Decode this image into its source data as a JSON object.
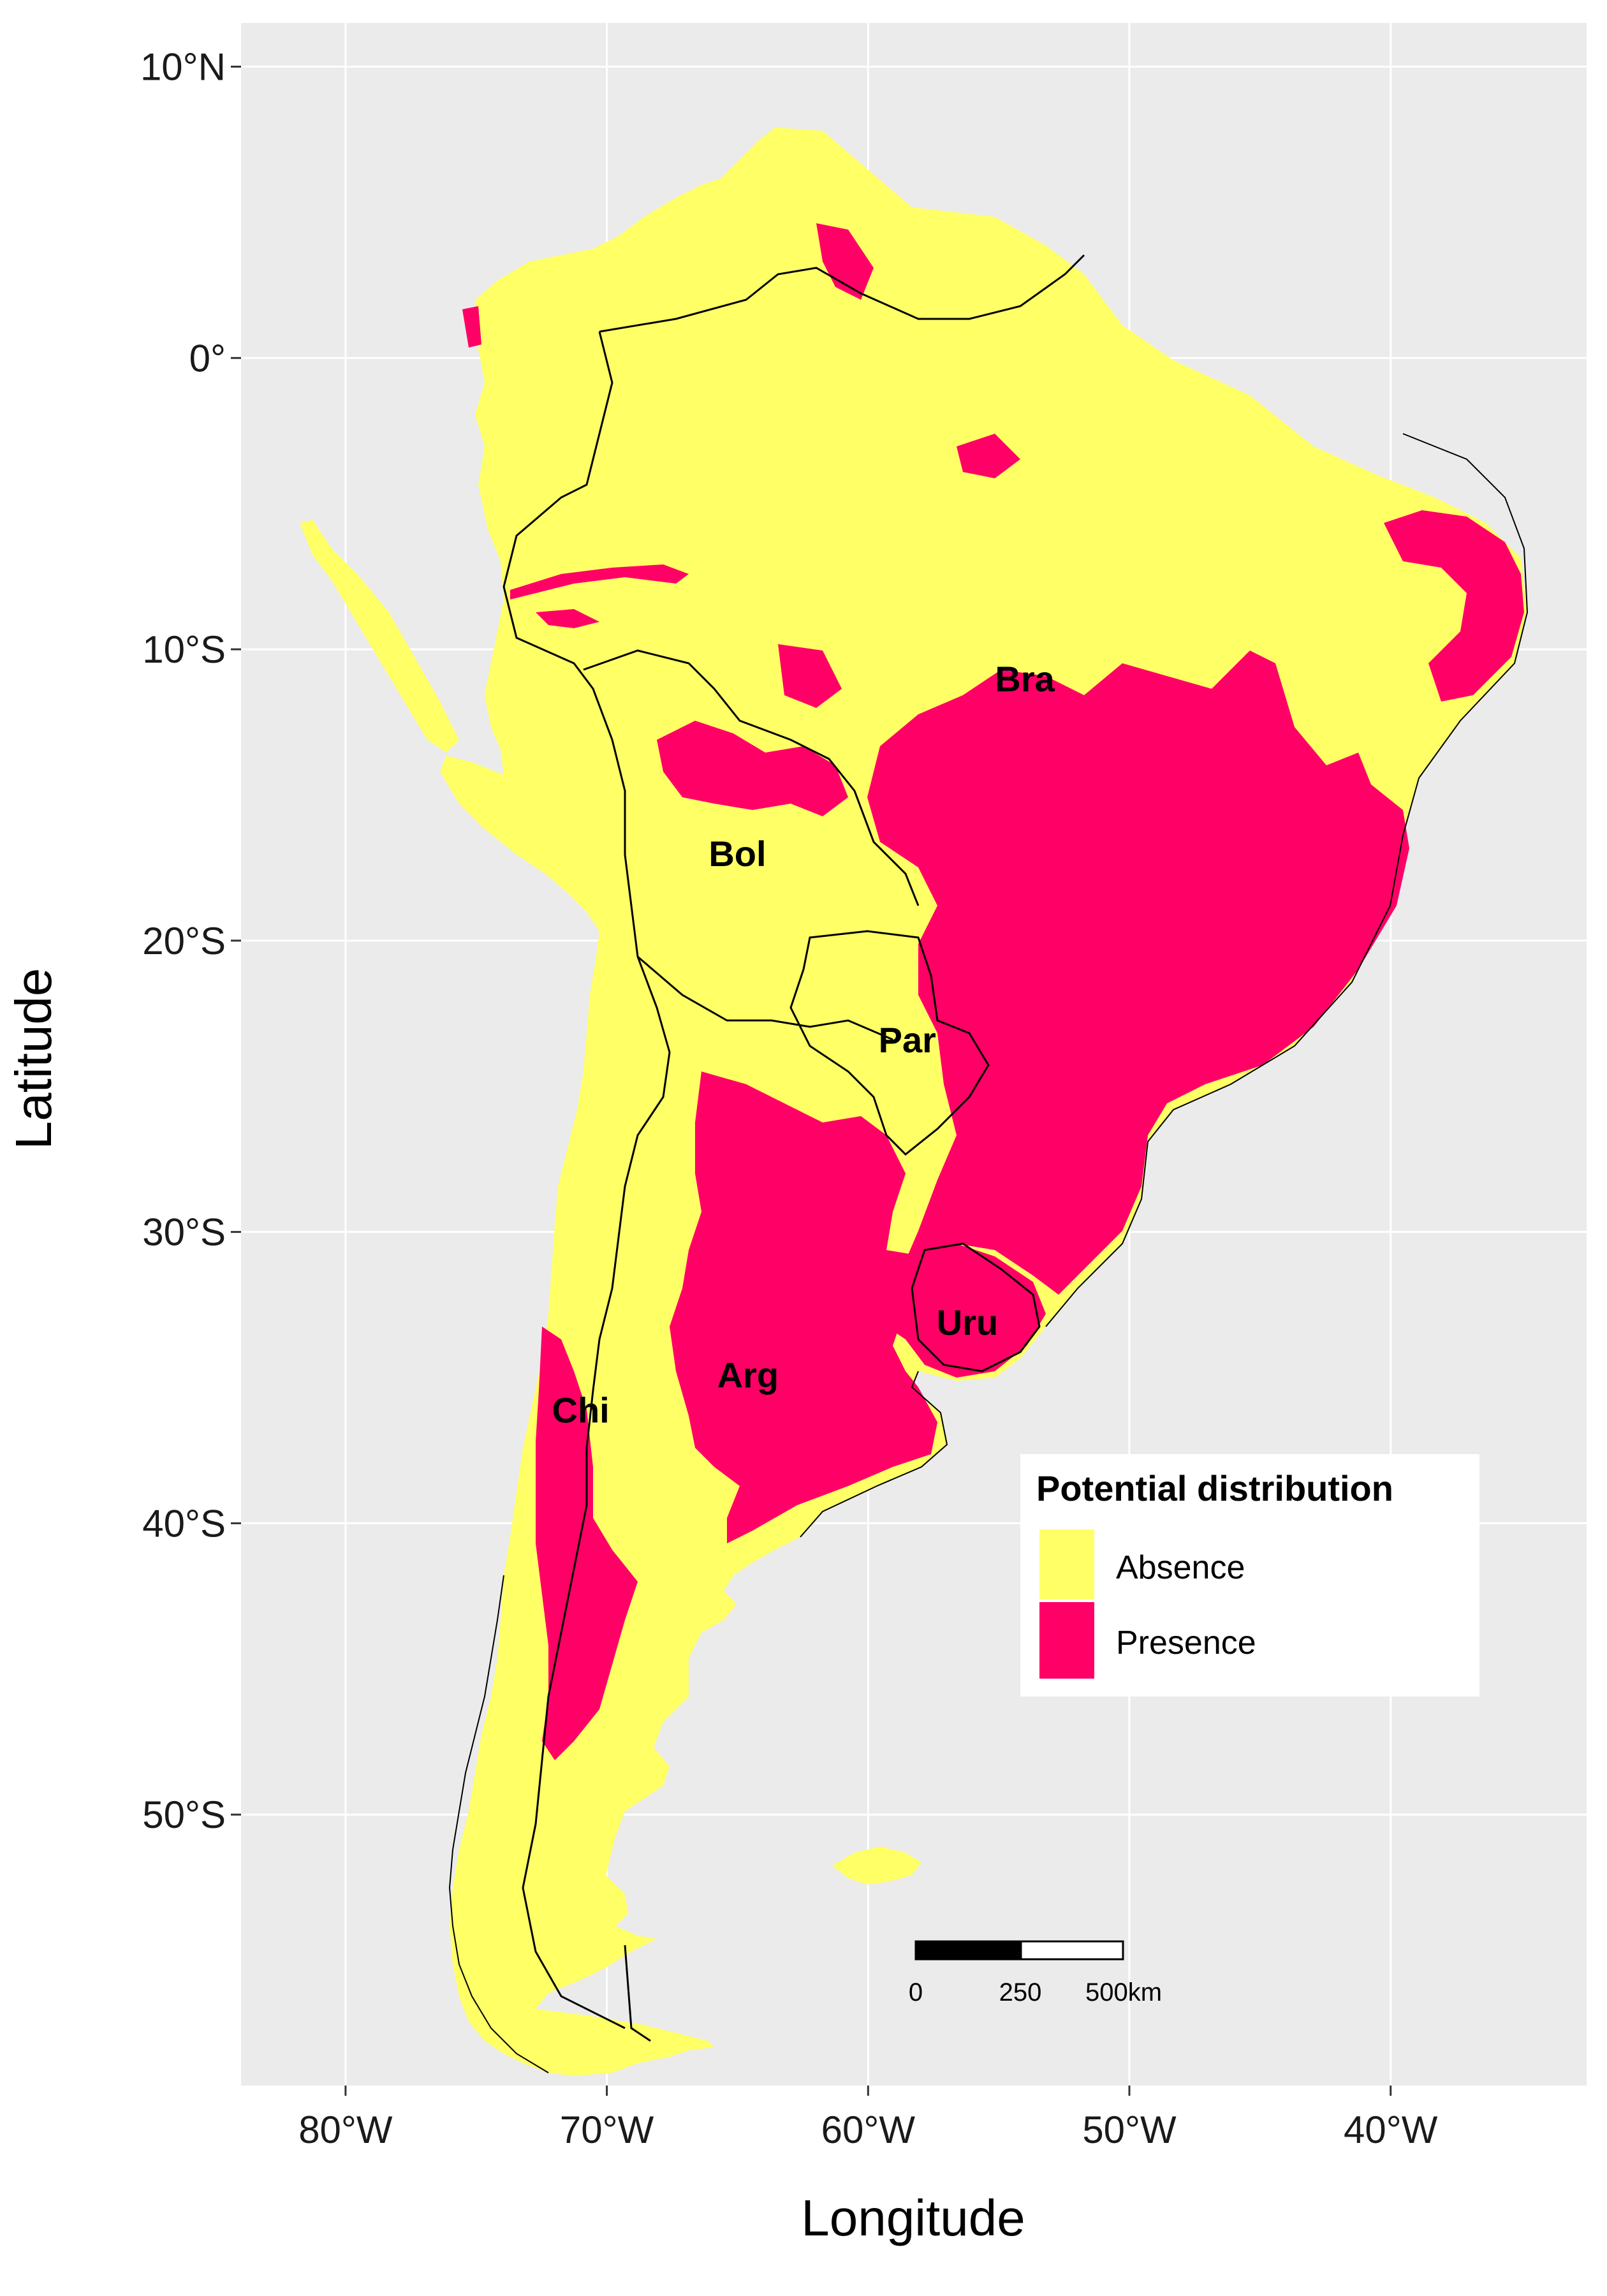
{
  "axes": {
    "x_title": "Longitude",
    "y_title": "Latitude",
    "x_ticks": [
      {
        "value": -80,
        "label": "80°W"
      },
      {
        "value": -70,
        "label": "70°W"
      },
      {
        "value": -60,
        "label": "60°W"
      },
      {
        "value": -50,
        "label": "50°W"
      },
      {
        "value": -40,
        "label": "40°W"
      }
    ],
    "y_ticks": [
      {
        "value": 10,
        "label": "10°N"
      },
      {
        "value": 0,
        "label": "0°"
      },
      {
        "value": -10,
        "label": "10°S"
      },
      {
        "value": -20,
        "label": "20°S"
      },
      {
        "value": -30,
        "label": "30°S"
      },
      {
        "value": -40,
        "label": "40°S"
      },
      {
        "value": -50,
        "label": "50°S"
      }
    ]
  },
  "map": {
    "extent": {
      "lon": [
        -84,
        -32.5
      ],
      "lat": [
        -59.3,
        11.5
      ]
    },
    "colors": {
      "panel": "#EBEBEB",
      "grid": "#FFFFFF",
      "absence": "#FFFF66",
      "presence": "#FF0066",
      "border": "#000000"
    },
    "countries": [
      {
        "code": "Bra",
        "label": "Bra",
        "lon": -54,
        "lat": -11
      },
      {
        "code": "Bol",
        "label": "Bol",
        "lon": -65,
        "lat": -17
      },
      {
        "code": "Par",
        "label": "Par",
        "lon": -58.5,
        "lat": -23.4
      },
      {
        "code": "Uru",
        "label": "Uru",
        "lon": -56.2,
        "lat": -33.1
      },
      {
        "code": "Arg",
        "label": "Arg",
        "lon": -64.6,
        "lat": -34.9
      },
      {
        "code": "Chi",
        "label": "Chi",
        "lon": -71,
        "lat": -36.1
      }
    ]
  },
  "legend": {
    "title": "Potential distribution",
    "items": [
      {
        "label": "Absence",
        "color": "#FFFF66"
      },
      {
        "label": "Presence",
        "color": "#FF0066"
      }
    ]
  },
  "scale_bar": {
    "labels": [
      "0",
      "250",
      "500km"
    ]
  }
}
